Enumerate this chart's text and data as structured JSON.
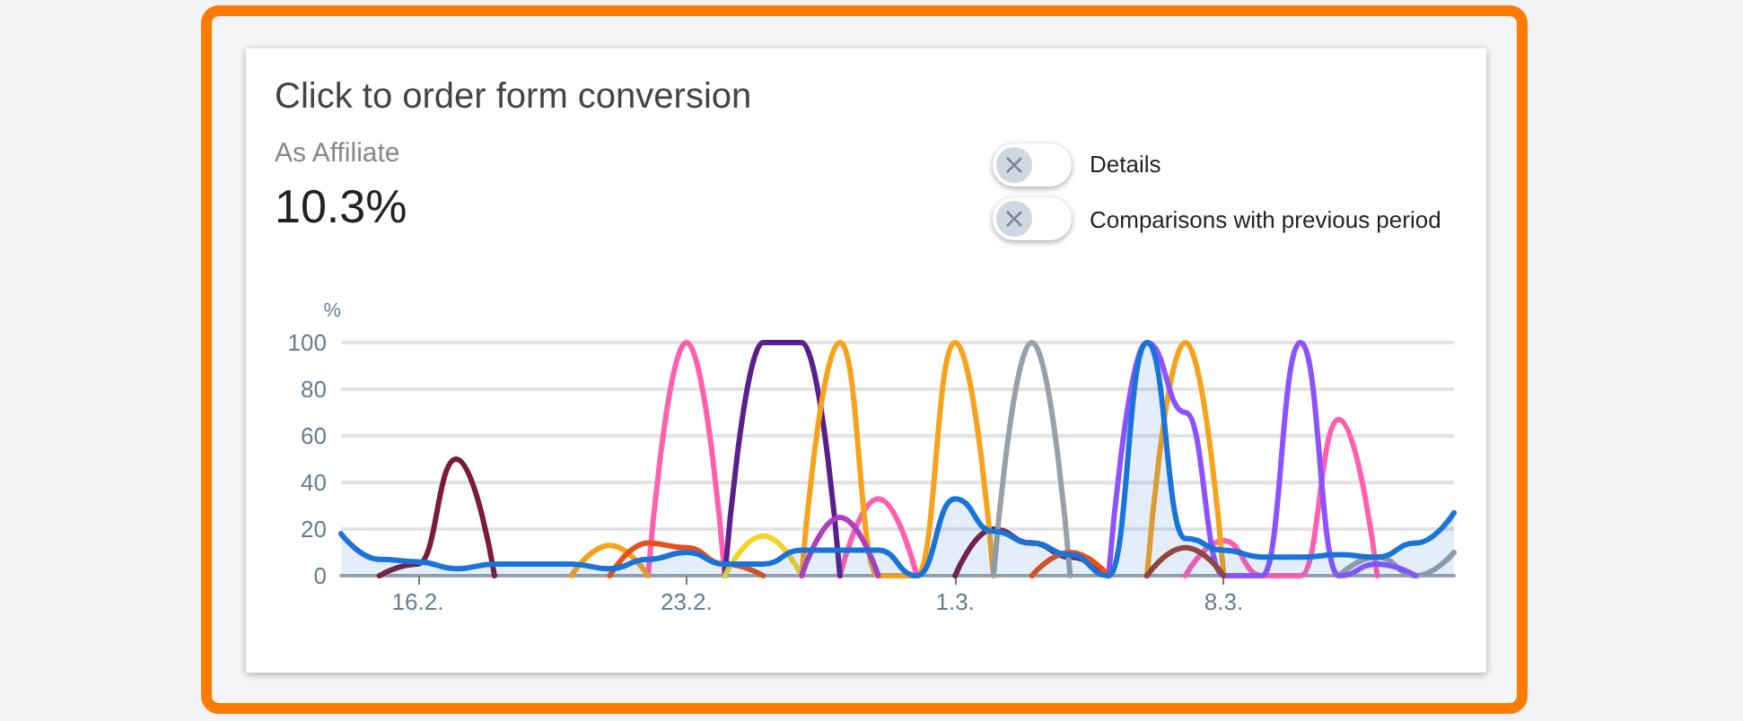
{
  "chart_data": {
    "type": "line",
    "title": "Click to order form conversion",
    "subtitle": "As Affiliate",
    "ylabel": "%",
    "annotations": [
      "10.3%",
      "Details",
      "Comparisons with previous period"
    ],
    "categories": [
      null,
      null,
      "16.2.",
      null,
      null,
      null,
      null,
      null,
      null,
      "23.2.",
      null,
      null,
      null,
      null,
      null,
      null,
      "1.3.",
      null,
      null,
      null,
      null,
      null,
      null,
      "8.3.",
      null,
      null,
      null,
      null,
      null,
      null
    ],
    "ylim": [
      0,
      100
    ],
    "yticks": [
      0,
      20,
      40,
      60,
      80,
      100
    ],
    "grid": "y",
    "marker": "none",
    "line_style": "solid",
    "series": [
      {
        "color": "#7b1a3a",
        "values": [
          null,
          0,
          5,
          50,
          0,
          null,
          null,
          null,
          null,
          null,
          null,
          null,
          null,
          null,
          null,
          null,
          0,
          20,
          14,
          8,
          0,
          null,
          null,
          null,
          null,
          null,
          null,
          null,
          null,
          null
        ]
      },
      {
        "color": "#ff5fae",
        "values": [
          null,
          null,
          null,
          null,
          null,
          null,
          null,
          null,
          0,
          100,
          0,
          null,
          null,
          0,
          33,
          0,
          null,
          null,
          null,
          null,
          null,
          null,
          0,
          15,
          0,
          0,
          67,
          0,
          null,
          null
        ]
      },
      {
        "color": "#5b1f8c",
        "values": [
          null,
          null,
          null,
          null,
          null,
          null,
          null,
          null,
          null,
          null,
          0,
          100,
          100,
          0,
          null,
          null,
          null,
          null,
          null,
          null,
          null,
          null,
          null,
          null,
          null,
          null,
          null,
          null,
          null,
          null
        ]
      },
      {
        "color": "#f7a21b",
        "values": [
          null,
          null,
          null,
          null,
          null,
          null,
          0,
          13,
          0,
          null,
          null,
          null,
          0,
          100,
          0,
          0,
          100,
          0,
          null,
          null,
          null,
          0,
          100,
          0,
          null,
          null,
          null,
          null,
          null,
          null
        ]
      },
      {
        "color": "#9aa0a6",
        "values": [
          null,
          null,
          null,
          null,
          null,
          null,
          null,
          null,
          null,
          null,
          null,
          null,
          null,
          null,
          null,
          null,
          null,
          0,
          100,
          0,
          null,
          null,
          null,
          null,
          null,
          null,
          0,
          8,
          0,
          10
        ]
      },
      {
        "color": "#8c52ff",
        "values": [
          null,
          null,
          null,
          null,
          null,
          null,
          null,
          null,
          null,
          null,
          null,
          null,
          null,
          null,
          null,
          null,
          null,
          null,
          null,
          null,
          0,
          100,
          70,
          0,
          0,
          100,
          0,
          5,
          0,
          null
        ]
      },
      {
        "color": "#e8501a",
        "values": [
          null,
          null,
          null,
          null,
          null,
          null,
          null,
          0,
          14,
          12,
          5,
          0,
          null,
          null,
          null,
          null,
          null,
          null,
          0,
          10,
          0,
          null,
          null,
          null,
          null,
          null,
          null,
          null,
          null,
          null
        ]
      },
      {
        "color": "#f5d327",
        "values": [
          null,
          null,
          null,
          null,
          null,
          null,
          null,
          null,
          null,
          null,
          0,
          17,
          0,
          null,
          null,
          null,
          null,
          null,
          null,
          null,
          null,
          null,
          null,
          null,
          null,
          null,
          null,
          null,
          null,
          null
        ]
      },
      {
        "color": "#b03cc0",
        "values": [
          null,
          null,
          null,
          null,
          null,
          null,
          null,
          null,
          null,
          null,
          null,
          null,
          0,
          25,
          0,
          null,
          null,
          null,
          null,
          null,
          null,
          null,
          null,
          null,
          null,
          null,
          null,
          null,
          null,
          null
        ]
      },
      {
        "color": "#a0402a",
        "values": [
          null,
          null,
          null,
          null,
          null,
          null,
          null,
          null,
          null,
          null,
          null,
          null,
          null,
          null,
          null,
          null,
          null,
          null,
          null,
          null,
          null,
          0,
          12,
          0,
          null,
          null,
          null,
          null,
          null,
          null
        ]
      },
      {
        "type": "area",
        "color": "#1a73d9",
        "values": [
          18,
          7,
          6,
          3,
          5,
          5,
          5,
          3,
          7,
          10,
          5,
          5,
          11,
          11,
          11,
          0,
          33,
          19,
          14,
          9,
          0,
          100,
          16,
          11,
          8,
          8,
          9,
          8,
          14,
          27
        ]
      }
    ]
  }
}
